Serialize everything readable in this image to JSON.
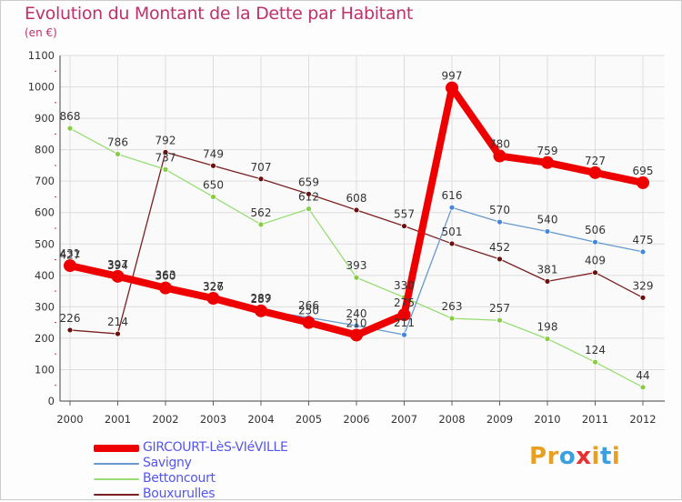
{
  "title": "Evolution du Montant de la Dette par Habitant",
  "subtitle": "(en €)",
  "logo": {
    "text": "Proxiti",
    "letters": [
      "P",
      "r",
      "o",
      "x",
      "i",
      "t",
      "i"
    ],
    "colors": [
      "#e8a020",
      "#e8a020",
      "#3aa0e0",
      "#e83030",
      "#e8a020",
      "#3aa0e0",
      "#e8a020"
    ]
  },
  "chart_data": {
    "type": "line",
    "title": "Evolution du Montant de la Dette par Habitant",
    "ylabel": "(en €)",
    "xlabel": "",
    "ylim": [
      0,
      1100
    ],
    "yticks": [
      0,
      100,
      200,
      300,
      400,
      500,
      600,
      700,
      800,
      900,
      1000,
      1100
    ],
    "x": [
      "2000",
      "2001",
      "2002",
      "2003",
      "2004",
      "2005",
      "2006",
      "2007",
      "2008",
      "2009",
      "2010",
      "2011",
      "2012"
    ],
    "grid": true,
    "legend": "bottom-left",
    "series": [
      {
        "name": "Bouxurulles",
        "color": "#7a2020",
        "width": 1.3,
        "point": "#6a1010",
        "values": [
          226,
          214,
          792,
          749,
          707,
          659,
          608,
          557,
          501,
          452,
          381,
          409,
          329
        ]
      },
      {
        "name": "Bettoncourt",
        "color": "#99dd77",
        "width": 1.3,
        "point": "#88cc44",
        "values": [
          868,
          786,
          737,
          650,
          562,
          612,
          393,
          330,
          263,
          257,
          198,
          124,
          44
        ]
      },
      {
        "name": "Savigny",
        "color": "#6699cc",
        "width": 1.3,
        "point": "#4488dd",
        "values": [
          427,
          394,
          363,
          326,
          289,
          266,
          240,
          211,
          616,
          570,
          540,
          506,
          475
        ]
      },
      {
        "name": "GIRCOURT-LèS-VIéVILLE",
        "color": "#ee0000",
        "width": 8,
        "point": "#ee0000",
        "values": [
          431,
          397,
          360,
          327,
          287,
          250,
          210,
          275,
          997,
          780,
          759,
          727,
          695
        ]
      }
    ],
    "legend_order": [
      "GIRCOURT-LèS-VIéVILLE",
      "Savigny",
      "Bettoncourt",
      "Bouxurulles"
    ]
  }
}
